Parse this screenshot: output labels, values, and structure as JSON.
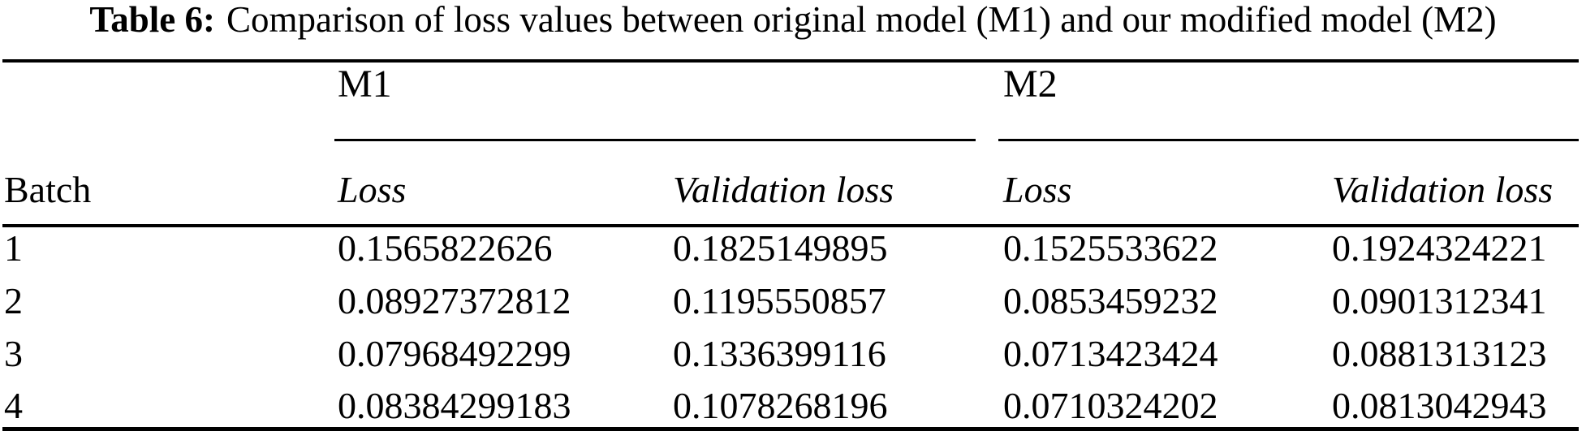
{
  "caption": {
    "label": "Table 6:",
    "text": "Comparison of loss values between original model (M1) and our modified model (M2)"
  },
  "table": {
    "groups": [
      {
        "label": "M1"
      },
      {
        "label": "M2"
      }
    ],
    "columns": [
      "Batch",
      "Loss",
      "Validation loss",
      "Loss",
      "Validation loss"
    ],
    "rows": [
      {
        "cells": [
          "1",
          "0.1565822626",
          "0.1825149895",
          "0.1525533622",
          "0.1924324221"
        ]
      },
      {
        "cells": [
          "2",
          "0.08927372812",
          "0.1195550857",
          "0.0853459232",
          "0.0901312341"
        ]
      },
      {
        "cells": [
          "3",
          "0.07968492299",
          "0.1336399116",
          "0.0713423424",
          "0.0881313123"
        ]
      },
      {
        "cells": [
          "4",
          "0.08384299183",
          "0.1078268196",
          "0.0710324202",
          "0.0813042943"
        ]
      }
    ]
  },
  "colors": {
    "text": "#000000",
    "background": "#ffffff",
    "rule": "#000000"
  }
}
